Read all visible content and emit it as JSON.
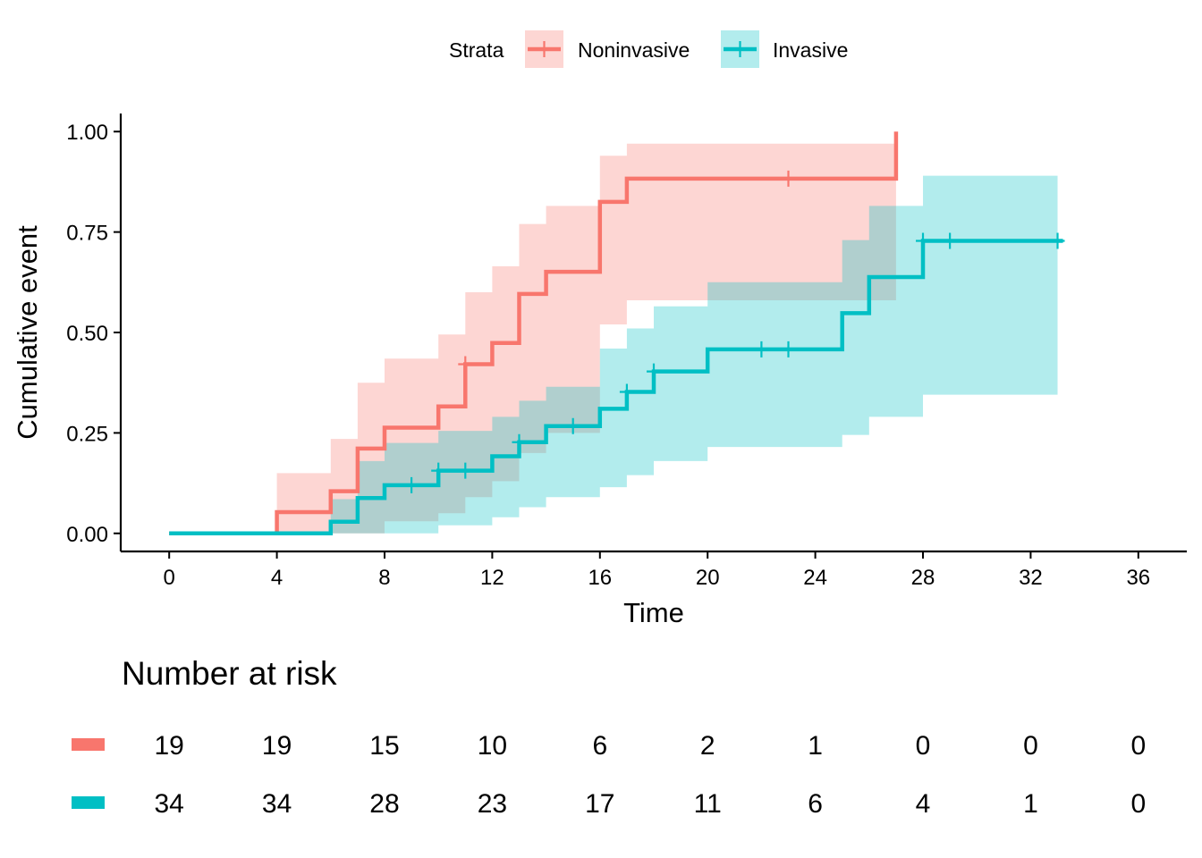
{
  "chart_data": {
    "type": "km-cumulative-event",
    "xlabel": "Time",
    "ylabel": "Cumulative event",
    "xlim": [
      -1.8,
      37.8
    ],
    "ylim": [
      -0.045,
      1.045
    ],
    "xticks": [
      0,
      4,
      8,
      12,
      16,
      20,
      24,
      28,
      32,
      36
    ],
    "xtick_labels": [
      "0",
      "4",
      "8",
      "12",
      "16",
      "20",
      "24",
      "28",
      "32",
      "36"
    ],
    "yticks": [
      0,
      0.25,
      0.5,
      0.75,
      1.0
    ],
    "ytick_labels": [
      "0.00",
      "0.25",
      "0.50",
      "0.75",
      "1.00"
    ],
    "legend": {
      "title": "Strata",
      "position": "top",
      "entries": [
        "Noninvasive",
        "Invasive"
      ]
    },
    "series": [
      {
        "name": "Noninvasive",
        "color": "#F8766D",
        "band_color": "#F8766D",
        "steps": [
          [
            0,
            0
          ],
          [
            4,
            0.053
          ],
          [
            6,
            0.105
          ],
          [
            7,
            0.211
          ],
          [
            8,
            0.263
          ],
          [
            10,
            0.316
          ],
          [
            11,
            0.421
          ],
          [
            12,
            0.474
          ],
          [
            13,
            0.596
          ],
          [
            14,
            0.651
          ],
          [
            16,
            0.825
          ],
          [
            17,
            0.883
          ],
          [
            27,
            1.0
          ]
        ],
        "lower": [
          [
            0,
            0
          ],
          [
            4,
            0
          ],
          [
            6,
            0
          ],
          [
            7,
            0
          ],
          [
            8,
            0.03
          ],
          [
            10,
            0.05
          ],
          [
            11,
            0.09
          ],
          [
            12,
            0.13
          ],
          [
            13,
            0.2
          ],
          [
            14,
            0.25
          ],
          [
            16,
            0.52
          ],
          [
            17,
            0.58
          ],
          [
            27,
            0.58
          ]
        ],
        "upper": [
          [
            0,
            0
          ],
          [
            4,
            0.15
          ],
          [
            6,
            0.235
          ],
          [
            7,
            0.375
          ],
          [
            8,
            0.435
          ],
          [
            10,
            0.495
          ],
          [
            11,
            0.6
          ],
          [
            12,
            0.665
          ],
          [
            13,
            0.77
          ],
          [
            14,
            0.815
          ],
          [
            16,
            0.94
          ],
          [
            17,
            0.97
          ],
          [
            27,
            0.97
          ]
        ],
        "end": 27,
        "censor_times": [
          11,
          23
        ]
      },
      {
        "name": "Invasive",
        "color": "#00BFC4",
        "band_color": "#00BFC4",
        "steps": [
          [
            0,
            0
          ],
          [
            6,
            0.029
          ],
          [
            7,
            0.088
          ],
          [
            8,
            0.12
          ],
          [
            10,
            0.156
          ],
          [
            12,
            0.192
          ],
          [
            13,
            0.227
          ],
          [
            14,
            0.267
          ],
          [
            16,
            0.31
          ],
          [
            17,
            0.352
          ],
          [
            18,
            0.403
          ],
          [
            20,
            0.458
          ],
          [
            25,
            0.548
          ],
          [
            26,
            0.638
          ],
          [
            28,
            0.728
          ],
          [
            33,
            0.728
          ]
        ],
        "lower": [
          [
            0,
            0
          ],
          [
            6,
            0
          ],
          [
            7,
            0
          ],
          [
            8,
            0
          ],
          [
            10,
            0.02
          ],
          [
            12,
            0.04
          ],
          [
            13,
            0.065
          ],
          [
            14,
            0.09
          ],
          [
            16,
            0.115
          ],
          [
            17,
            0.145
          ],
          [
            18,
            0.18
          ],
          [
            20,
            0.215
          ],
          [
            25,
            0.245
          ],
          [
            26,
            0.29
          ],
          [
            28,
            0.345
          ],
          [
            33,
            0.345
          ]
        ],
        "upper": [
          [
            0,
            0
          ],
          [
            6,
            0.085
          ],
          [
            7,
            0.18
          ],
          [
            8,
            0.225
          ],
          [
            10,
            0.255
          ],
          [
            12,
            0.29
          ],
          [
            13,
            0.33
          ],
          [
            14,
            0.365
          ],
          [
            16,
            0.46
          ],
          [
            17,
            0.51
          ],
          [
            18,
            0.565
          ],
          [
            20,
            0.625
          ],
          [
            25,
            0.73
          ],
          [
            26,
            0.815
          ],
          [
            28,
            0.89
          ],
          [
            33,
            0.89
          ]
        ],
        "end": 33.2,
        "censor_times": [
          9,
          10,
          11,
          13,
          15,
          17,
          18,
          22,
          23,
          28,
          29,
          33
        ]
      }
    ],
    "risk_table": {
      "title": "Number at risk",
      "times": [
        0,
        4,
        8,
        12,
        16,
        20,
        24,
        28,
        32,
        36
      ],
      "rows": [
        {
          "name": "Noninvasive",
          "color": "#F8766D",
          "counts": [
            "19",
            "19",
            "15",
            "10",
            "6",
            "2",
            "1",
            "0",
            "0",
            "0"
          ]
        },
        {
          "name": "Invasive",
          "color": "#00BFC4",
          "counts": [
            "34",
            "34",
            "28",
            "23",
            "17",
            "11",
            "6",
            "4",
            "1",
            "0"
          ]
        }
      ]
    }
  }
}
